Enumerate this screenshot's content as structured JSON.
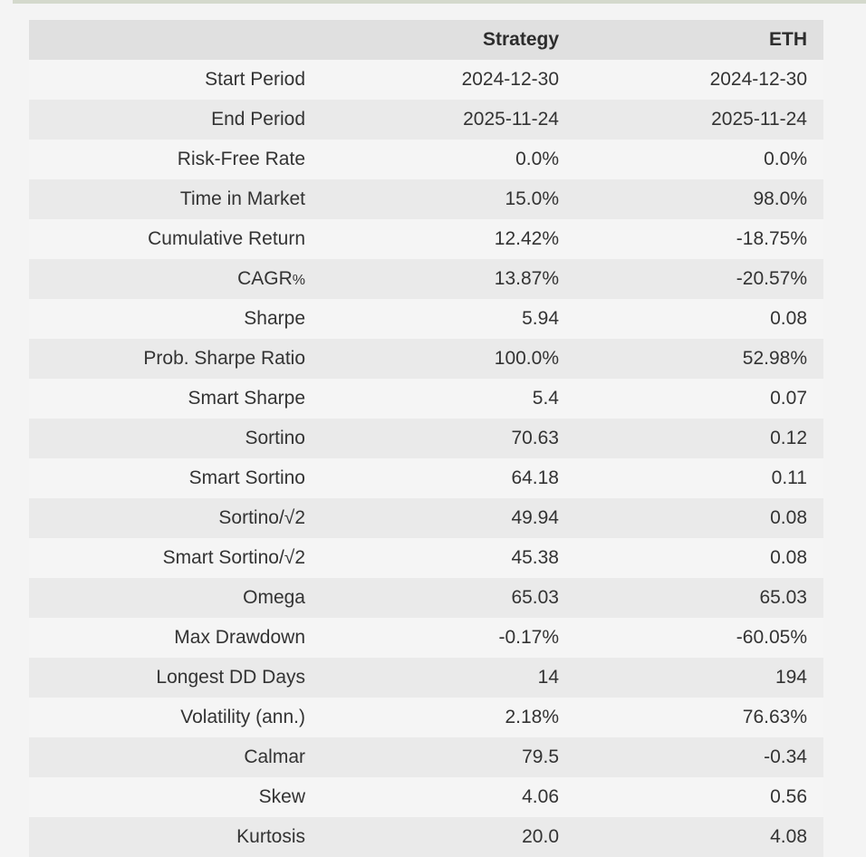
{
  "page": {
    "background_color": "#f4f4f4",
    "top_strip_color": "#d4d9cc"
  },
  "table": {
    "colors": {
      "header_bg": "#e0e0e0",
      "row_light_bg": "#f5f5f5",
      "row_dark_bg": "#eaeaea",
      "text": "#333333"
    },
    "header": {
      "metric": "",
      "strategy": "Strategy",
      "eth": "ETH"
    },
    "rows": [
      {
        "metric": "Start Period",
        "strategy": "2024-12-30",
        "eth": "2024-12-30"
      },
      {
        "metric": "End Period",
        "strategy": "2025-11-24",
        "eth": "2025-11-24"
      },
      {
        "metric": "Risk-Free Rate",
        "strategy": "0.0%",
        "eth": "0.0%"
      },
      {
        "metric": "Time in Market",
        "strategy": "15.0%",
        "eth": "98.0%"
      },
      {
        "metric": "Cumulative Return",
        "strategy": "12.42%",
        "eth": "-18.75%"
      },
      {
        "metric": "CAGR",
        "metric_suffix": "%",
        "strategy": "13.87%",
        "eth": "-20.57%"
      },
      {
        "metric": "Sharpe",
        "strategy": "5.94",
        "eth": "0.08"
      },
      {
        "metric": "Prob. Sharpe Ratio",
        "strategy": "100.0%",
        "eth": "52.98%"
      },
      {
        "metric": "Smart Sharpe",
        "strategy": "5.4",
        "eth": "0.07"
      },
      {
        "metric": "Sortino",
        "strategy": "70.63",
        "eth": "0.12"
      },
      {
        "metric": "Smart Sortino",
        "strategy": "64.18",
        "eth": "0.11"
      },
      {
        "metric": "Sortino/√2",
        "strategy": "49.94",
        "eth": "0.08"
      },
      {
        "metric": "Smart Sortino/√2",
        "strategy": "45.38",
        "eth": "0.08"
      },
      {
        "metric": "Omega",
        "strategy": "65.03",
        "eth": "65.03"
      },
      {
        "metric": "Max Drawdown",
        "strategy": "-0.17%",
        "eth": "-60.05%"
      },
      {
        "metric": "Longest DD Days",
        "strategy": "14",
        "eth": "194"
      },
      {
        "metric": "Volatility (ann.)",
        "strategy": "2.18%",
        "eth": "76.63%"
      },
      {
        "metric": "Calmar",
        "strategy": "79.5",
        "eth": "-0.34"
      },
      {
        "metric": "Skew",
        "strategy": "4.06",
        "eth": "0.56"
      },
      {
        "metric": "Kurtosis",
        "strategy": "20.0",
        "eth": "4.08"
      }
    ]
  }
}
